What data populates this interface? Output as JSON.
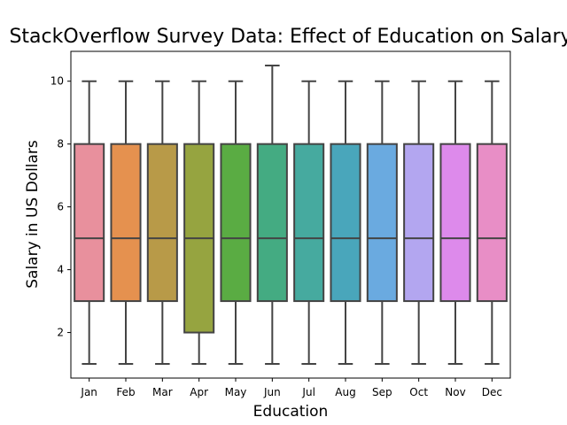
{
  "chart_data": {
    "type": "box",
    "title": "StackOverflow Survey Data: Effect of Education on Salary",
    "xlabel": "Education",
    "ylabel": "Salary in US Dollars",
    "ylim": [
      0.55,
      10.95
    ],
    "yticks": [
      2,
      4,
      6,
      8,
      10
    ],
    "grid": false,
    "legend": "none",
    "categories": [
      "Jan",
      "Feb",
      "Mar",
      "Apr",
      "May",
      "Jun",
      "Jul",
      "Aug",
      "Sep",
      "Oct",
      "Nov",
      "Dec"
    ],
    "boxes": [
      {
        "category": "Jan",
        "whisker_low": 1,
        "q1": 3,
        "median": 5,
        "q3": 8,
        "whisker_high": 10,
        "color": "#e8909d"
      },
      {
        "category": "Feb",
        "whisker_low": 1,
        "q1": 3,
        "median": 5,
        "q3": 8,
        "whisker_high": 10,
        "color": "#e5914f"
      },
      {
        "category": "Mar",
        "whisker_low": 1,
        "q1": 3,
        "median": 5,
        "q3": 8,
        "whisker_high": 10,
        "color": "#b89a48"
      },
      {
        "category": "Apr",
        "whisker_low": 1,
        "q1": 2,
        "median": 5,
        "q3": 8,
        "whisker_high": 10,
        "color": "#96a440"
      },
      {
        "category": "May",
        "whisker_low": 1,
        "q1": 3,
        "median": 5,
        "q3": 8,
        "whisker_high": 10,
        "color": "#5aac43"
      },
      {
        "category": "Jun",
        "whisker_low": 1,
        "q1": 3,
        "median": 5,
        "q3": 8,
        "whisker_high": 10.5,
        "color": "#44ab82"
      },
      {
        "category": "Jul",
        "whisker_low": 1,
        "q1": 3,
        "median": 5,
        "q3": 8,
        "whisker_high": 10,
        "color": "#46aa9f"
      },
      {
        "category": "Aug",
        "whisker_low": 1,
        "q1": 3,
        "median": 5,
        "q3": 8,
        "whisker_high": 10,
        "color": "#49a6bb"
      },
      {
        "category": "Sep",
        "whisker_low": 1,
        "q1": 3,
        "median": 5,
        "q3": 8,
        "whisker_high": 10,
        "color": "#6aaae0"
      },
      {
        "category": "Oct",
        "whisker_low": 1,
        "q1": 3,
        "median": 5,
        "q3": 8,
        "whisker_high": 10,
        "color": "#b3a6f0"
      },
      {
        "category": "Nov",
        "whisker_low": 1,
        "q1": 3,
        "median": 5,
        "q3": 8,
        "whisker_high": 10,
        "color": "#dd8aeb"
      },
      {
        "category": "Dec",
        "whisker_low": 1,
        "q1": 3,
        "median": 5,
        "q3": 8,
        "whisker_high": 10,
        "color": "#e88ec6"
      }
    ],
    "line_color": "#444444"
  }
}
